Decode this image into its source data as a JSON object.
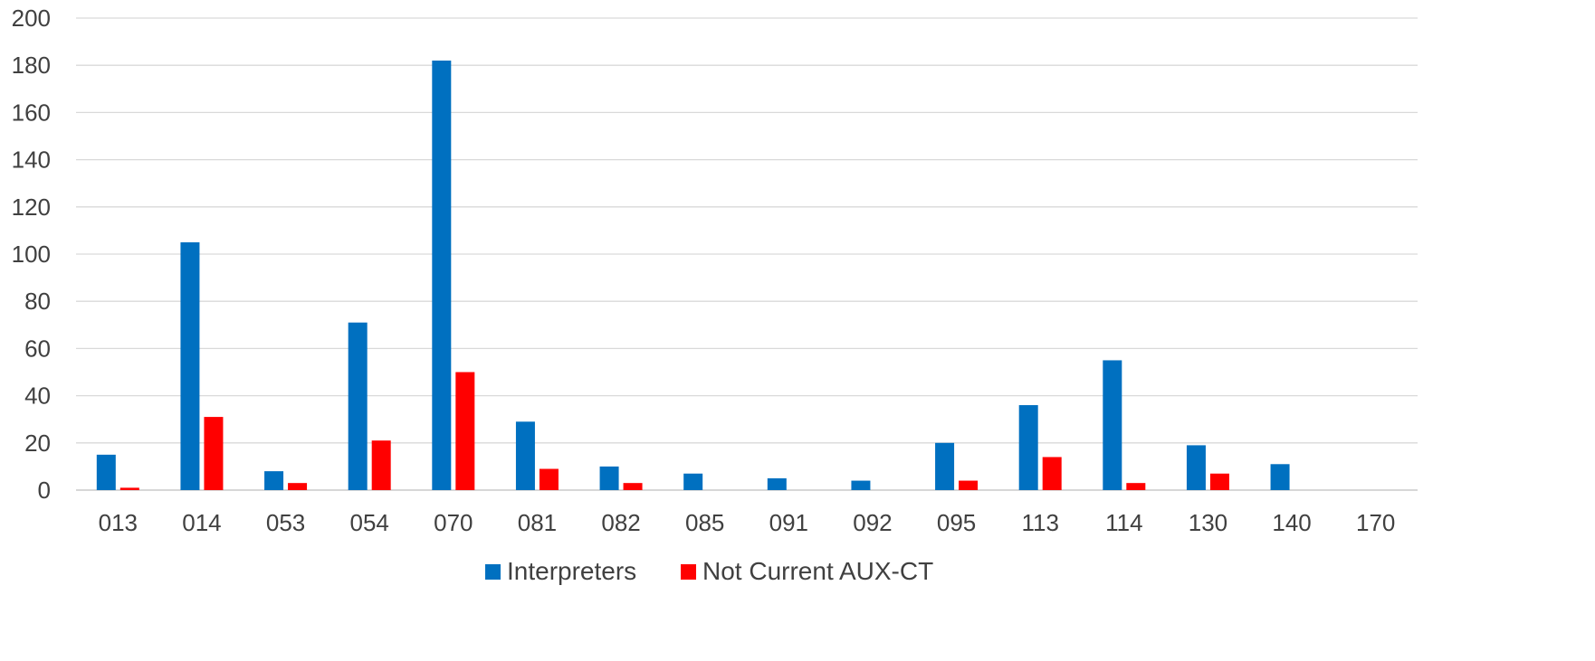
{
  "chart_data": {
    "type": "bar",
    "title": "",
    "xlabel": "",
    "ylabel": "",
    "ylim": [
      0,
      200
    ],
    "yticks": [
      "0",
      "20",
      "40",
      "60",
      "80",
      "100",
      "120",
      "140",
      "160",
      "180",
      "200"
    ],
    "grid": "horizontal",
    "legend_position": "bottom",
    "categories": [
      "013",
      "014",
      "053",
      "054",
      "070",
      "081",
      "082",
      "085",
      "091",
      "092",
      "095",
      "113",
      "114",
      "130",
      "140",
      "170"
    ],
    "series": [
      {
        "name": "Interpreters",
        "color": "#0070C0",
        "values": [
          15,
          105,
          8,
          71,
          182,
          29,
          10,
          7,
          5,
          4,
          20,
          36,
          55,
          19,
          11,
          0
        ]
      },
      {
        "name": "Not Current AUX-CT",
        "color": "#FF0000",
        "values": [
          1,
          31,
          3,
          21,
          50,
          9,
          3,
          0,
          0,
          0,
          4,
          14,
          3,
          7,
          0,
          0
        ]
      }
    ]
  }
}
